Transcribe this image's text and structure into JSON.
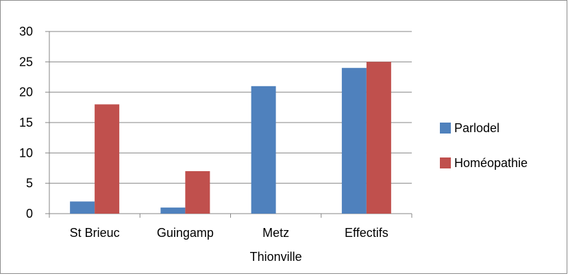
{
  "chart_data": {
    "type": "bar",
    "categories": [
      [
        "St Brieuc"
      ],
      [
        "Guingamp"
      ],
      [
        "Metz",
        "Thionville"
      ],
      [
        "Effectifs"
      ]
    ],
    "series": [
      {
        "name": "Parlodel",
        "color": "#4f81bd",
        "values": [
          2,
          1,
          21,
          24
        ]
      },
      {
        "name": "Homéopathie",
        "color": "#c0504d",
        "values": [
          18,
          7,
          0,
          25
        ]
      }
    ],
    "ylim": [
      0,
      30
    ],
    "yticks": [
      "0",
      "5",
      "10",
      "15",
      "20",
      "25",
      "30"
    ],
    "grid": true,
    "legend_position": "right",
    "title": "",
    "xlabel": "",
    "ylabel": ""
  }
}
